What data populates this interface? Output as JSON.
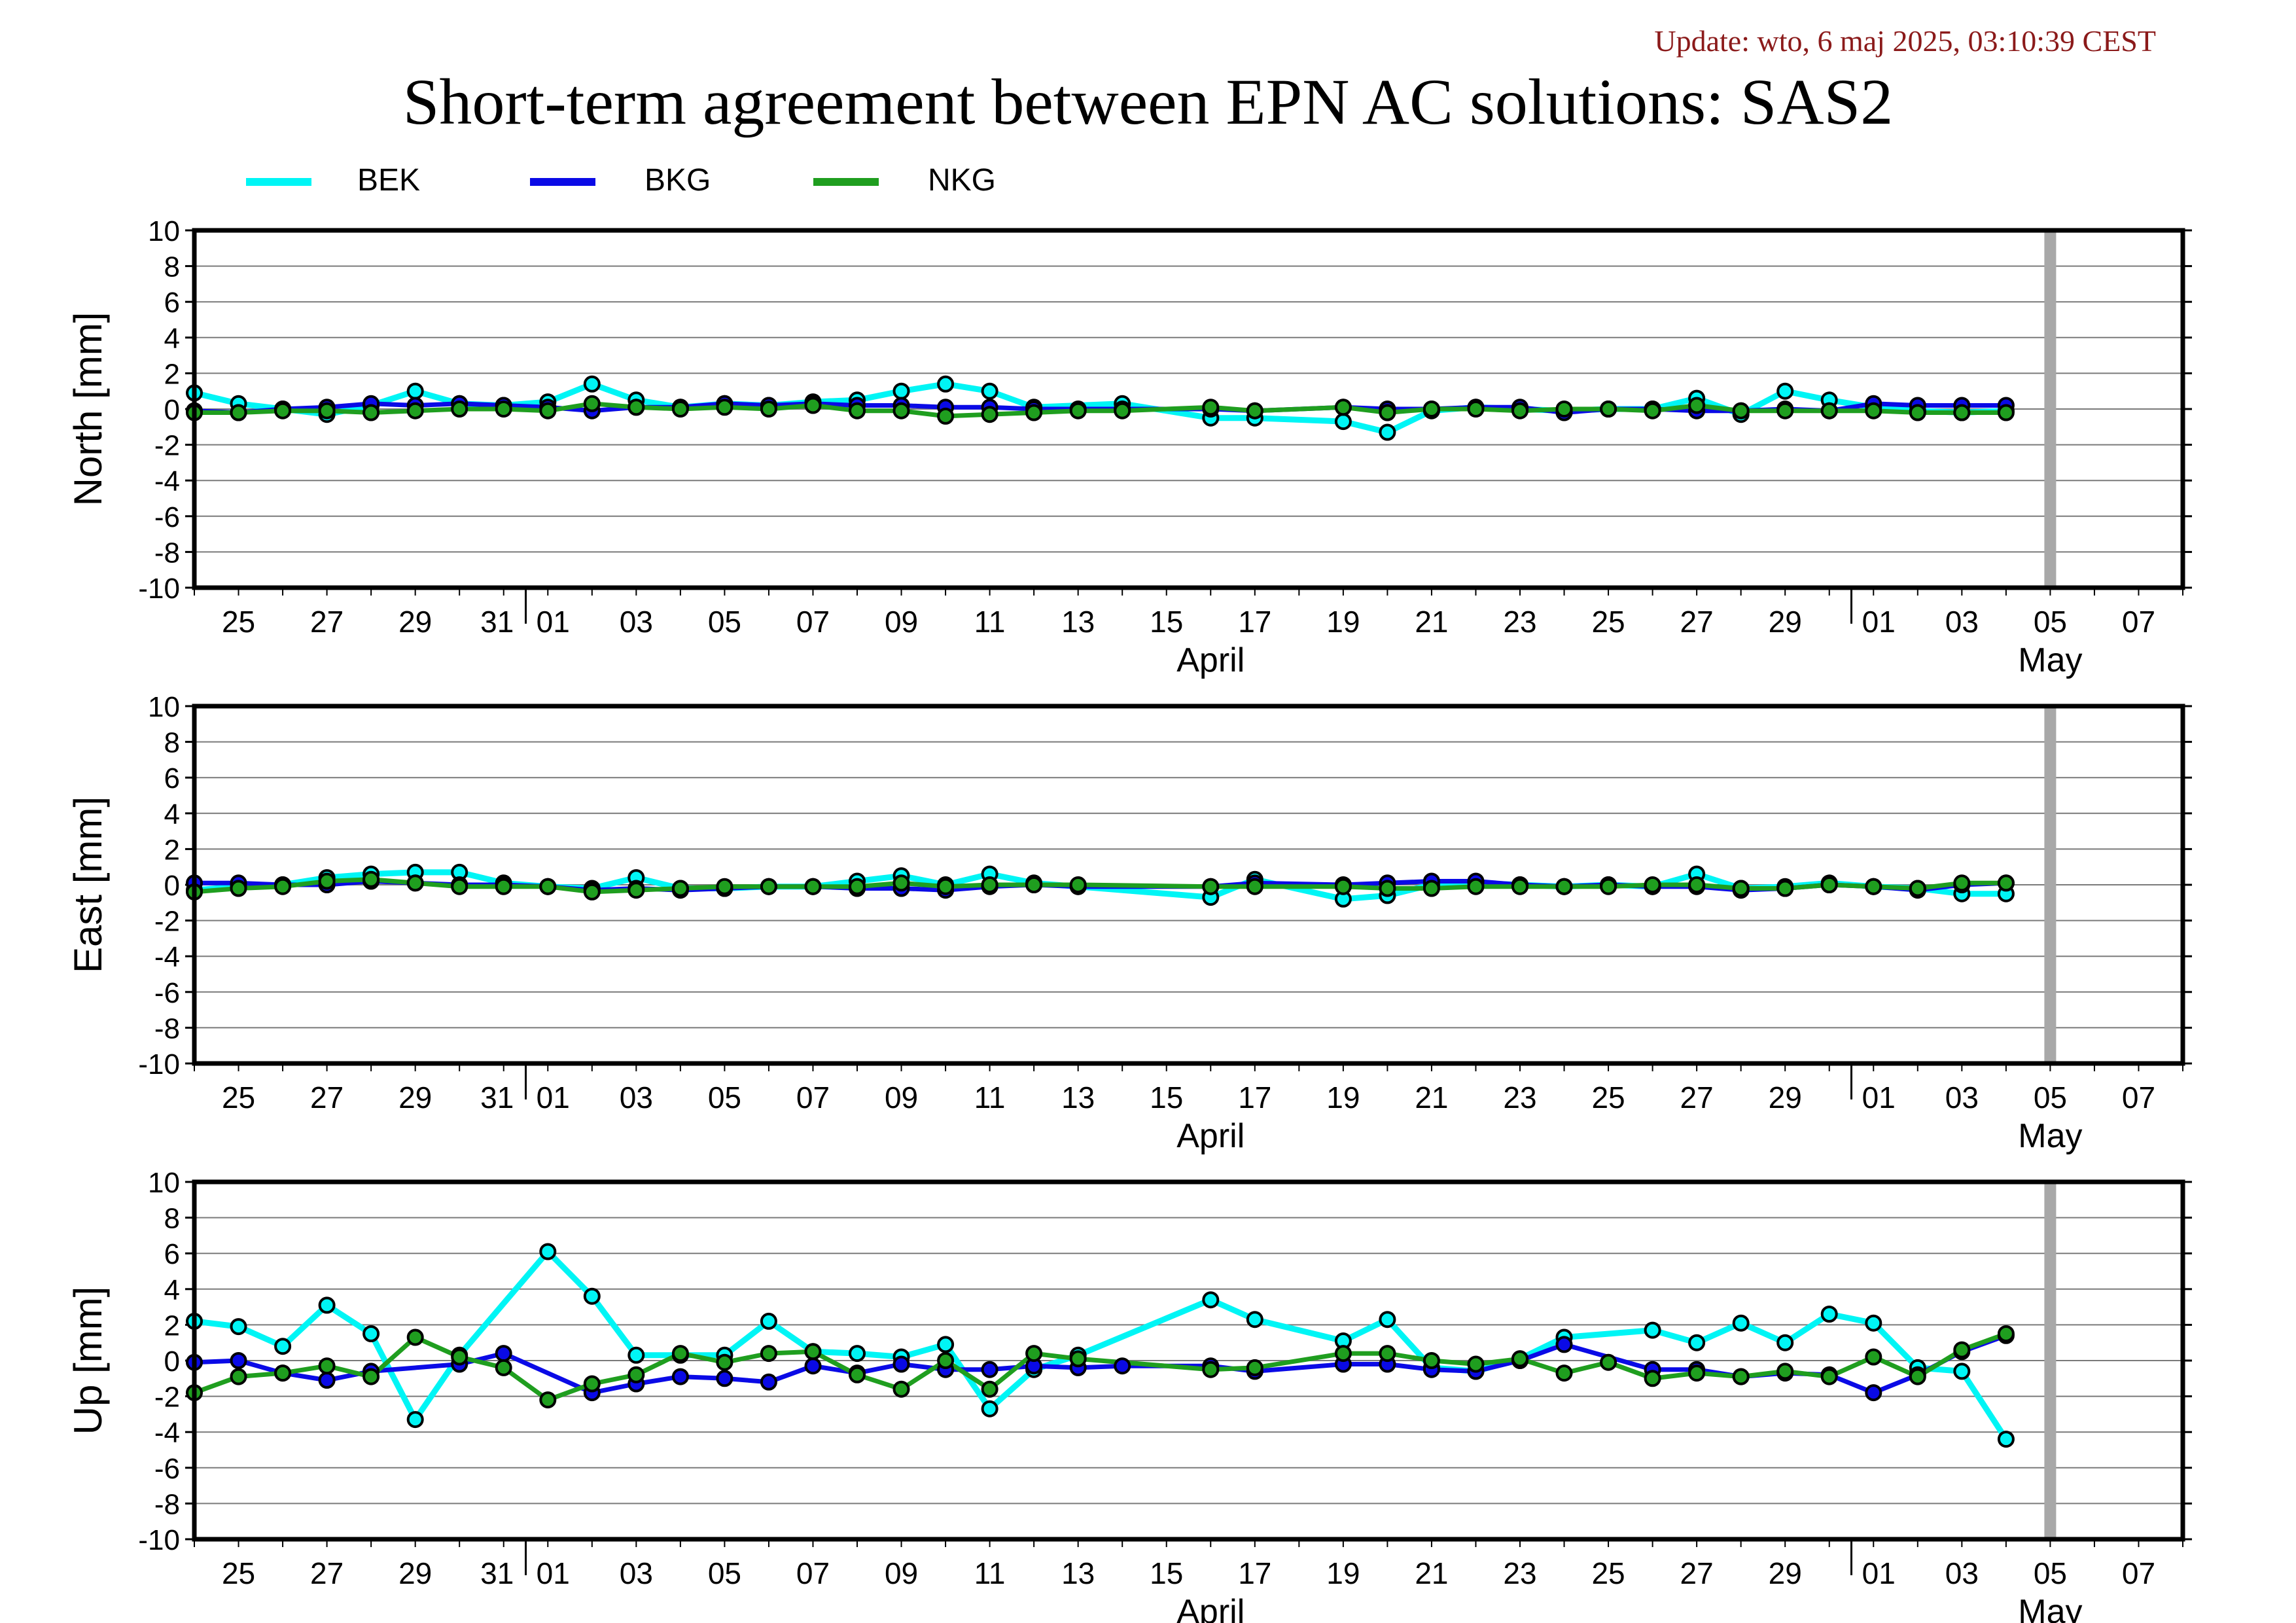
{
  "update_text": "Update: wto, 6 maj 2025, 03:10:39 CEST",
  "title": "Short-term agreement between EPN AC solutions: SAS2",
  "colors": {
    "BEK": "#00f5f5",
    "BKG": "#0a0ae6",
    "NKG": "#1f9e1f",
    "today_marker": "#a8a8a8"
  },
  "legend": [
    {
      "name": "BEK",
      "color": "#00f5f5"
    },
    {
      "name": "BKG",
      "color": "#0a0ae6"
    },
    {
      "name": "NKG",
      "color": "#1f9e1f"
    }
  ],
  "chart_data": [
    {
      "type": "line",
      "ylabel": "North [mm]",
      "ylim": [
        -10,
        10
      ],
      "yticks": [
        10,
        8,
        6,
        4,
        2,
        0,
        -2,
        -4,
        -6,
        -8,
        -10
      ],
      "xlim": [
        "2025-03-24",
        "2025-05-08"
      ],
      "xtick_labels": [
        "25",
        "27",
        "29",
        "31",
        "01",
        "03",
        "05",
        "07",
        "09",
        "11",
        "13",
        "15",
        "17",
        "19",
        "21",
        "23",
        "25",
        "27",
        "29",
        "01",
        "03",
        "05",
        "07"
      ],
      "month_labels": [
        "April",
        "May"
      ],
      "grid": true,
      "today_marker": "2025-05-05",
      "series": [
        {
          "name": "BEK",
          "x": [
            "2025-03-24",
            "2025-03-25",
            "2025-03-26",
            "2025-03-27",
            "2025-03-28",
            "2025-03-29",
            "2025-03-30",
            "2025-03-31",
            "2025-04-01",
            "2025-04-02",
            "2025-04-03",
            "2025-04-04",
            "2025-04-05",
            "2025-04-06",
            "2025-04-07",
            "2025-04-08",
            "2025-04-09",
            "2025-04-10",
            "2025-04-11",
            "2025-04-12",
            "2025-04-14",
            "2025-04-16",
            "2025-04-17",
            "2025-04-19",
            "2025-04-20",
            "2025-04-21",
            "2025-04-22",
            "2025-04-23",
            "2025-04-24",
            "2025-04-25",
            "2025-04-26",
            "2025-04-27",
            "2025-04-28",
            "2025-04-29",
            "2025-04-30",
            "2025-05-01",
            "2025-05-02",
            "2025-05-03",
            "2025-05-04"
          ],
          "values": [
            0.9,
            0.3,
            0.0,
            -0.3,
            0.2,
            1.0,
            0.3,
            0.2,
            0.4,
            1.4,
            0.5,
            0.1,
            0.3,
            0.2,
            0.4,
            0.5,
            1.0,
            1.4,
            1.0,
            0.1,
            0.3,
            -0.5,
            -0.5,
            -0.7,
            -1.3,
            -0.1,
            0.1,
            0.0,
            -0.1,
            0.0,
            0.0,
            0.6,
            -0.3,
            1.0,
            0.5,
            0.1,
            -0.1,
            -0.2,
            -0.1
          ]
        },
        {
          "name": "BKG",
          "x": [
            "2025-03-24",
            "2025-03-25",
            "2025-03-26",
            "2025-03-27",
            "2025-03-28",
            "2025-03-29",
            "2025-03-30",
            "2025-03-31",
            "2025-04-01",
            "2025-04-02",
            "2025-04-03",
            "2025-04-04",
            "2025-04-05",
            "2025-04-06",
            "2025-04-07",
            "2025-04-08",
            "2025-04-09",
            "2025-04-10",
            "2025-04-11",
            "2025-04-12",
            "2025-04-13",
            "2025-04-14",
            "2025-04-16",
            "2025-04-17",
            "2025-04-19",
            "2025-04-20",
            "2025-04-21",
            "2025-04-22",
            "2025-04-23",
            "2025-04-24",
            "2025-04-25",
            "2025-04-26",
            "2025-04-27",
            "2025-04-28",
            "2025-04-29",
            "2025-04-30",
            "2025-05-01",
            "2025-05-02",
            "2025-05-03",
            "2025-05-04"
          ],
          "values": [
            -0.1,
            -0.2,
            0.0,
            0.1,
            0.3,
            0.2,
            0.3,
            0.2,
            0.1,
            -0.1,
            0.1,
            0.1,
            0.3,
            0.2,
            0.3,
            0.2,
            0.2,
            0.1,
            0.1,
            0.0,
            0.0,
            0.0,
            0.0,
            -0.1,
            0.1,
            0.0,
            0.0,
            0.1,
            0.1,
            -0.2,
            0.0,
            0.0,
            -0.1,
            -0.1,
            0.0,
            -0.1,
            0.3,
            0.2,
            0.2,
            0.2
          ]
        },
        {
          "name": "NKG",
          "x": [
            "2025-03-24",
            "2025-03-25",
            "2025-03-26",
            "2025-03-27",
            "2025-03-28",
            "2025-03-29",
            "2025-03-30",
            "2025-03-31",
            "2025-04-01",
            "2025-04-02",
            "2025-04-03",
            "2025-04-04",
            "2025-04-05",
            "2025-04-06",
            "2025-04-07",
            "2025-04-08",
            "2025-04-09",
            "2025-04-10",
            "2025-04-11",
            "2025-04-12",
            "2025-04-13",
            "2025-04-14",
            "2025-04-16",
            "2025-04-17",
            "2025-04-19",
            "2025-04-20",
            "2025-04-21",
            "2025-04-22",
            "2025-04-23",
            "2025-04-24",
            "2025-04-25",
            "2025-04-26",
            "2025-04-27",
            "2025-04-28",
            "2025-04-29",
            "2025-04-30",
            "2025-05-01",
            "2025-05-02",
            "2025-05-03",
            "2025-05-04"
          ],
          "values": [
            -0.2,
            -0.2,
            -0.1,
            -0.1,
            -0.2,
            -0.1,
            0.0,
            0.0,
            -0.1,
            0.3,
            0.1,
            0.0,
            0.1,
            0.0,
            0.2,
            -0.1,
            -0.1,
            -0.4,
            -0.3,
            -0.2,
            -0.1,
            -0.1,
            0.1,
            -0.1,
            0.1,
            -0.2,
            0.0,
            0.0,
            -0.1,
            0.0,
            0.0,
            -0.1,
            0.2,
            -0.1,
            -0.1,
            -0.1,
            -0.1,
            -0.2,
            -0.2,
            -0.2
          ]
        }
      ]
    },
    {
      "type": "line",
      "ylabel": "East [mm]",
      "ylim": [
        -10,
        10
      ],
      "yticks": [
        10,
        8,
        6,
        4,
        2,
        0,
        -2,
        -4,
        -6,
        -8,
        -10
      ],
      "xlim": [
        "2025-03-24",
        "2025-05-08"
      ],
      "xtick_labels": [
        "25",
        "27",
        "29",
        "31",
        "01",
        "03",
        "05",
        "07",
        "09",
        "11",
        "13",
        "15",
        "17",
        "19",
        "21",
        "23",
        "25",
        "27",
        "29",
        "01",
        "03",
        "05",
        "07"
      ],
      "month_labels": [
        "April",
        "May"
      ],
      "grid": true,
      "today_marker": "2025-05-05",
      "series": [
        {
          "name": "BEK",
          "x": [
            "2025-03-24",
            "2025-03-25",
            "2025-03-26",
            "2025-03-27",
            "2025-03-28",
            "2025-03-29",
            "2025-03-30",
            "2025-03-31",
            "2025-04-01",
            "2025-04-02",
            "2025-04-03",
            "2025-04-04",
            "2025-04-05",
            "2025-04-06",
            "2025-04-07",
            "2025-04-08",
            "2025-04-09",
            "2025-04-10",
            "2025-04-11",
            "2025-04-12",
            "2025-04-13",
            "2025-04-16",
            "2025-04-17",
            "2025-04-19",
            "2025-04-20",
            "2025-04-21",
            "2025-04-22",
            "2025-04-23",
            "2025-04-24",
            "2025-04-25",
            "2025-04-26",
            "2025-04-27",
            "2025-04-28",
            "2025-04-29",
            "2025-04-30",
            "2025-05-01",
            "2025-05-02",
            "2025-05-03",
            "2025-05-04"
          ],
          "values": [
            -0.3,
            -0.1,
            0.0,
            0.4,
            0.6,
            0.7,
            0.7,
            0.1,
            -0.1,
            -0.2,
            0.4,
            -0.2,
            -0.2,
            -0.1,
            -0.1,
            0.2,
            0.5,
            0.0,
            0.6,
            0.1,
            -0.1,
            -0.7,
            0.3,
            -0.8,
            -0.6,
            0.0,
            0.1,
            0.0,
            -0.1,
            0.0,
            -0.1,
            0.6,
            -0.2,
            -0.1,
            0.1,
            -0.1,
            -0.2,
            -0.5,
            -0.5
          ]
        },
        {
          "name": "BKG",
          "x": [
            "2025-03-24",
            "2025-03-25",
            "2025-03-26",
            "2025-03-27",
            "2025-03-28",
            "2025-03-29",
            "2025-03-30",
            "2025-03-31",
            "2025-04-01",
            "2025-04-02",
            "2025-04-03",
            "2025-04-04",
            "2025-04-05",
            "2025-04-06",
            "2025-04-07",
            "2025-04-08",
            "2025-04-09",
            "2025-04-10",
            "2025-04-11",
            "2025-04-12",
            "2025-04-13",
            "2025-04-16",
            "2025-04-17",
            "2025-04-19",
            "2025-04-20",
            "2025-04-21",
            "2025-04-22",
            "2025-04-23",
            "2025-04-24",
            "2025-04-25",
            "2025-04-26",
            "2025-04-27",
            "2025-04-28",
            "2025-04-29",
            "2025-04-30",
            "2025-05-01",
            "2025-05-02",
            "2025-05-03",
            "2025-05-04"
          ],
          "values": [
            0.1,
            0.1,
            0.0,
            0.0,
            0.2,
            0.1,
            0.0,
            0.0,
            -0.1,
            -0.3,
            -0.2,
            -0.3,
            -0.2,
            -0.1,
            -0.1,
            -0.2,
            -0.2,
            -0.3,
            -0.1,
            0.0,
            -0.1,
            -0.1,
            0.1,
            0.0,
            0.1,
            0.2,
            0.2,
            0.0,
            -0.1,
            0.0,
            -0.1,
            -0.1,
            -0.3,
            -0.2,
            0.0,
            -0.1,
            -0.3,
            0.0,
            0.1
          ]
        },
        {
          "name": "NKG",
          "x": [
            "2025-03-24",
            "2025-03-25",
            "2025-03-26",
            "2025-03-27",
            "2025-03-28",
            "2025-03-29",
            "2025-03-30",
            "2025-03-31",
            "2025-04-01",
            "2025-04-02",
            "2025-04-03",
            "2025-04-04",
            "2025-04-05",
            "2025-04-06",
            "2025-04-07",
            "2025-04-08",
            "2025-04-09",
            "2025-04-10",
            "2025-04-11",
            "2025-04-12",
            "2025-04-13",
            "2025-04-16",
            "2025-04-17",
            "2025-04-19",
            "2025-04-20",
            "2025-04-21",
            "2025-04-22",
            "2025-04-23",
            "2025-04-24",
            "2025-04-25",
            "2025-04-26",
            "2025-04-27",
            "2025-04-28",
            "2025-04-29",
            "2025-04-30",
            "2025-05-01",
            "2025-05-02",
            "2025-05-03",
            "2025-05-04"
          ],
          "values": [
            -0.4,
            -0.2,
            -0.1,
            0.2,
            0.3,
            0.1,
            -0.1,
            -0.1,
            -0.1,
            -0.4,
            -0.3,
            -0.2,
            -0.1,
            -0.1,
            -0.1,
            -0.1,
            0.1,
            -0.1,
            0.0,
            0.0,
            0.0,
            -0.1,
            -0.1,
            -0.1,
            -0.2,
            -0.2,
            -0.1,
            -0.1,
            -0.1,
            -0.1,
            0.0,
            0.0,
            -0.2,
            -0.2,
            0.0,
            -0.1,
            -0.2,
            0.1,
            0.1
          ]
        }
      ]
    },
    {
      "type": "line",
      "ylabel": "Up [mm]",
      "ylim": [
        -10,
        10
      ],
      "yticks": [
        10,
        8,
        6,
        4,
        2,
        0,
        -2,
        -4,
        -6,
        -8,
        -10
      ],
      "xlim": [
        "2025-03-24",
        "2025-05-08"
      ],
      "xtick_labels": [
        "25",
        "27",
        "29",
        "31",
        "01",
        "03",
        "05",
        "07",
        "09",
        "11",
        "13",
        "15",
        "17",
        "19",
        "21",
        "23",
        "25",
        "27",
        "29",
        "01",
        "03",
        "05",
        "07"
      ],
      "month_labels": [
        "April",
        "May"
      ],
      "grid": true,
      "today_marker": "2025-05-05",
      "series": [
        {
          "name": "BEK",
          "x": [
            "2025-03-24",
            "2025-03-25",
            "2025-03-26",
            "2025-03-27",
            "2025-03-28",
            "2025-03-29",
            "2025-03-30",
            "2025-04-01",
            "2025-04-02",
            "2025-04-03",
            "2025-04-04",
            "2025-04-05",
            "2025-04-06",
            "2025-04-07",
            "2025-04-08",
            "2025-04-09",
            "2025-04-10",
            "2025-04-11",
            "2025-04-12",
            "2025-04-13",
            "2025-04-16",
            "2025-04-17",
            "2025-04-19",
            "2025-04-20",
            "2025-04-21",
            "2025-04-22",
            "2025-04-23",
            "2025-04-24",
            "2025-04-26",
            "2025-04-27",
            "2025-04-28",
            "2025-04-29",
            "2025-04-30",
            "2025-05-01",
            "2025-05-02",
            "2025-05-03",
            "2025-05-04"
          ],
          "values": [
            2.2,
            1.9,
            0.8,
            3.1,
            1.5,
            -3.3,
            0.3,
            6.1,
            3.6,
            0.3,
            0.3,
            0.3,
            2.2,
            0.5,
            0.4,
            0.2,
            0.9,
            -2.7,
            -0.5,
            0.3,
            3.4,
            2.3,
            1.1,
            2.3,
            -0.4,
            -0.6,
            0.1,
            1.3,
            1.7,
            1.0,
            2.1,
            1.0,
            2.6,
            2.1,
            -0.4,
            -0.6,
            -4.4
          ]
        },
        {
          "name": "BKG",
          "x": [
            "2025-03-24",
            "2025-03-25",
            "2025-03-26",
            "2025-03-27",
            "2025-03-28",
            "2025-03-30",
            "2025-03-31",
            "2025-04-02",
            "2025-04-03",
            "2025-04-04",
            "2025-04-05",
            "2025-04-06",
            "2025-04-07",
            "2025-04-08",
            "2025-04-09",
            "2025-04-10",
            "2025-04-11",
            "2025-04-12",
            "2025-04-13",
            "2025-04-14",
            "2025-04-16",
            "2025-04-17",
            "2025-04-19",
            "2025-04-20",
            "2025-04-21",
            "2025-04-22",
            "2025-04-23",
            "2025-04-24",
            "2025-04-26",
            "2025-04-27",
            "2025-04-28",
            "2025-04-29",
            "2025-04-30",
            "2025-05-01",
            "2025-05-02",
            "2025-05-03",
            "2025-05-04"
          ],
          "values": [
            -0.1,
            0.0,
            -0.7,
            -1.1,
            -0.6,
            -0.2,
            0.4,
            -1.8,
            -1.3,
            -0.9,
            -1.0,
            -1.2,
            -0.3,
            -0.7,
            -0.2,
            -0.5,
            -0.5,
            -0.3,
            -0.4,
            -0.3,
            -0.3,
            -0.6,
            -0.2,
            -0.2,
            -0.5,
            -0.6,
            0.0,
            0.9,
            -0.5,
            -0.5,
            -0.9,
            -0.7,
            -0.8,
            -1.8,
            -0.8,
            0.5,
            1.4
          ]
        },
        {
          "name": "NKG",
          "x": [
            "2025-03-24",
            "2025-03-25",
            "2025-03-26",
            "2025-03-27",
            "2025-03-28",
            "2025-03-29",
            "2025-03-30",
            "2025-03-31",
            "2025-04-01",
            "2025-04-02",
            "2025-04-03",
            "2025-04-04",
            "2025-04-05",
            "2025-04-06",
            "2025-04-07",
            "2025-04-08",
            "2025-04-09",
            "2025-04-10",
            "2025-04-11",
            "2025-04-12",
            "2025-04-13",
            "2025-04-16",
            "2025-04-17",
            "2025-04-19",
            "2025-04-20",
            "2025-04-21",
            "2025-04-22",
            "2025-04-23",
            "2025-04-24",
            "2025-04-25",
            "2025-04-26",
            "2025-04-27",
            "2025-04-28",
            "2025-04-29",
            "2025-04-30",
            "2025-05-01",
            "2025-05-02",
            "2025-05-03",
            "2025-05-04"
          ],
          "values": [
            -1.8,
            -0.9,
            -0.7,
            -0.3,
            -0.9,
            1.3,
            0.2,
            -0.4,
            -2.2,
            -1.3,
            -0.8,
            0.4,
            -0.1,
            0.4,
            0.5,
            -0.8,
            -1.6,
            0.0,
            -1.6,
            0.4,
            0.1,
            -0.5,
            -0.4,
            0.4,
            0.4,
            0.0,
            -0.2,
            0.1,
            -0.7,
            -0.1,
            -1.0,
            -0.7,
            -0.9,
            -0.6,
            -0.9,
            0.2,
            -0.9,
            0.6,
            1.5
          ]
        }
      ]
    }
  ]
}
